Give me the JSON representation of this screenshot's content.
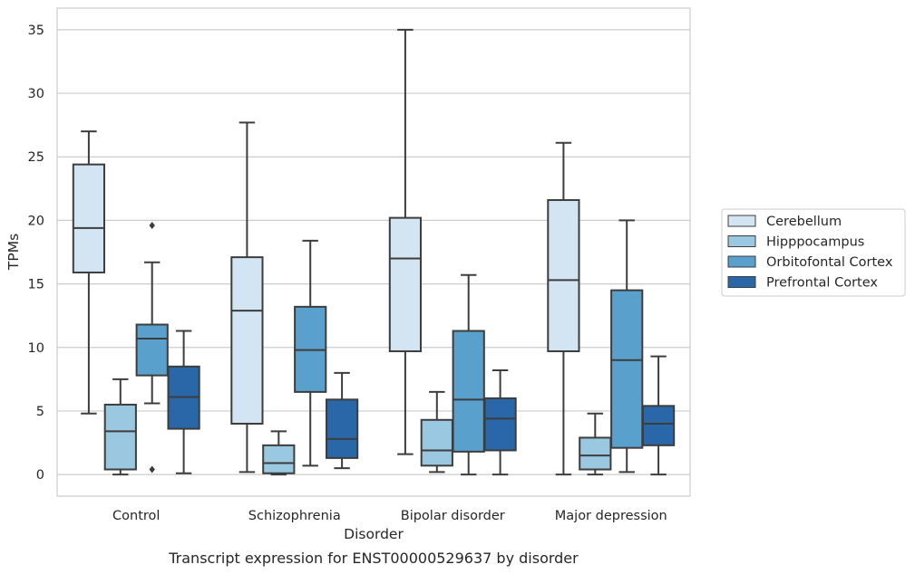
{
  "chart_data": {
    "type": "boxplot",
    "caption": "Transcript expression for ENST00000529637 by disorder",
    "xlabel": "Disorder",
    "ylabel": "TPMs",
    "ylim": [
      -1.7,
      36.7
    ],
    "yticks": [
      0,
      5,
      10,
      15,
      20,
      25,
      30,
      35
    ],
    "grid": "horizontal",
    "legend_position": "right",
    "categories": [
      "Control",
      "Schizophrenia",
      "Bipolar disorder",
      "Major depression"
    ],
    "series": [
      {
        "name": "Cerebellum",
        "color": "#d3e4f3",
        "boxes": [
          {
            "whisker_low": 4.8,
            "q1": 15.9,
            "median": 19.4,
            "q3": 24.4,
            "whisker_high": 27.0,
            "outliers": []
          },
          {
            "whisker_low": 0.2,
            "q1": 4.0,
            "median": 12.9,
            "q3": 17.1,
            "whisker_high": 27.7,
            "outliers": []
          },
          {
            "whisker_low": 1.6,
            "q1": 9.7,
            "median": 17.0,
            "q3": 20.2,
            "whisker_high": 35.0,
            "outliers": []
          },
          {
            "whisker_low": 0.0,
            "q1": 9.7,
            "median": 15.3,
            "q3": 21.6,
            "whisker_high": 26.1,
            "outliers": []
          }
        ]
      },
      {
        "name": "Hipppocampus",
        "color": "#9ac8e0",
        "boxes": [
          {
            "whisker_low": 0.0,
            "q1": 0.4,
            "median": 3.4,
            "q3": 5.5,
            "whisker_high": 7.5,
            "outliers": []
          },
          {
            "whisker_low": 0.0,
            "q1": 0.1,
            "median": 0.9,
            "q3": 2.3,
            "whisker_high": 3.4,
            "outliers": []
          },
          {
            "whisker_low": 0.2,
            "q1": 0.7,
            "median": 1.9,
            "q3": 4.3,
            "whisker_high": 6.5,
            "outliers": []
          },
          {
            "whisker_low": 0.0,
            "q1": 0.4,
            "median": 1.5,
            "q3": 2.9,
            "whisker_high": 4.8,
            "outliers": []
          }
        ]
      },
      {
        "name": "Orbitofontal Cortex",
        "color": "#5aa0cd",
        "boxes": [
          {
            "whisker_low": 5.6,
            "q1": 7.8,
            "median": 10.7,
            "q3": 11.8,
            "whisker_high": 16.7,
            "outliers": [
              19.6,
              0.4
            ]
          },
          {
            "whisker_low": 0.7,
            "q1": 6.5,
            "median": 9.8,
            "q3": 13.2,
            "whisker_high": 18.4,
            "outliers": []
          },
          {
            "whisker_low": 0.0,
            "q1": 1.8,
            "median": 5.9,
            "q3": 11.3,
            "whisker_high": 15.7,
            "outliers": []
          },
          {
            "whisker_low": 0.2,
            "q1": 2.1,
            "median": 9.0,
            "q3": 14.5,
            "whisker_high": 20.0,
            "outliers": []
          }
        ]
      },
      {
        "name": "Prefrontal Cortex",
        "color": "#2967a8",
        "boxes": [
          {
            "whisker_low": 0.1,
            "q1": 3.6,
            "median": 6.1,
            "q3": 8.5,
            "whisker_high": 11.3,
            "outliers": []
          },
          {
            "whisker_low": 0.5,
            "q1": 1.3,
            "median": 2.8,
            "q3": 5.9,
            "whisker_high": 8.0,
            "outliers": []
          },
          {
            "whisker_low": 0.0,
            "q1": 1.9,
            "median": 4.4,
            "q3": 6.0,
            "whisker_high": 8.2,
            "outliers": []
          },
          {
            "whisker_low": 0.0,
            "q1": 2.3,
            "median": 4.0,
            "q3": 5.4,
            "whisker_high": 9.3,
            "outliers": []
          }
        ]
      }
    ]
  }
}
